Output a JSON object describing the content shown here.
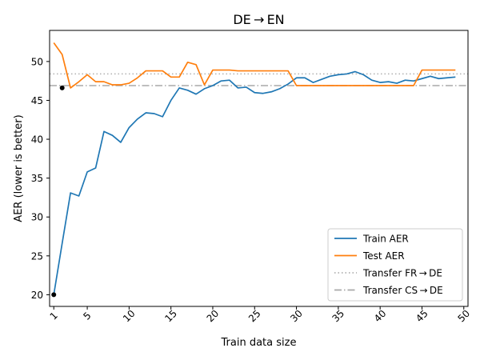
{
  "chart_data": {
    "type": "line",
    "title": "DE → EN",
    "xlabel": "Train data size",
    "ylabel": "AER (lower is better)",
    "xlim": [
      0.5,
      50.5
    ],
    "ylim": [
      18.5,
      54
    ],
    "x_ticks": [
      1,
      5,
      10,
      15,
      20,
      25,
      30,
      35,
      40,
      45,
      50
    ],
    "x_tick_labels": [
      "1",
      "5",
      "10",
      "15",
      "20",
      "25",
      "30",
      "35",
      "40",
      "45",
      "50"
    ],
    "y_ticks": [
      20,
      25,
      30,
      35,
      40,
      45,
      50
    ],
    "y_tick_labels": [
      "20",
      "25",
      "30",
      "35",
      "40",
      "45",
      "50"
    ],
    "grid": false,
    "legend_position": "lower-right",
    "x": [
      1,
      2,
      3,
      4,
      5,
      6,
      7,
      8,
      9,
      10,
      11,
      12,
      13,
      14,
      15,
      16,
      17,
      18,
      19,
      20,
      21,
      22,
      23,
      24,
      25,
      26,
      27,
      28,
      29,
      30,
      31,
      32,
      33,
      34,
      35,
      36,
      37,
      38,
      39,
      40,
      41,
      42,
      43,
      44,
      45,
      46,
      47,
      48,
      49
    ],
    "series": [
      {
        "name": "Train AER",
        "color": "#1f77b4",
        "style": "solid",
        "values": [
          20.0,
          26.6,
          33.1,
          32.7,
          35.8,
          36.3,
          41.0,
          40.5,
          39.6,
          41.5,
          42.6,
          43.4,
          43.3,
          42.9,
          45.0,
          46.6,
          46.3,
          45.8,
          46.5,
          46.9,
          47.5,
          47.6,
          46.6,
          46.7,
          46.0,
          45.9,
          46.1,
          46.5,
          47.1,
          47.9,
          47.9,
          47.3,
          47.7,
          48.1,
          48.3,
          48.4,
          48.7,
          48.3,
          47.6,
          47.3,
          47.4,
          47.2,
          47.6,
          47.5,
          47.8,
          48.1,
          47.8,
          47.9,
          48.0
        ]
      },
      {
        "name": "Test AER",
        "color": "#ff7f0e",
        "style": "solid",
        "values": [
          52.4,
          50.9,
          46.6,
          47.4,
          48.3,
          47.4,
          47.4,
          47.0,
          47.0,
          47.2,
          47.9,
          48.8,
          48.8,
          48.8,
          48.0,
          48.0,
          49.9,
          49.6,
          47.0,
          48.9,
          48.9,
          48.9,
          48.8,
          48.8,
          48.8,
          48.8,
          48.8,
          48.8,
          48.8,
          46.9,
          46.9,
          46.9,
          46.9,
          46.9,
          46.9,
          46.9,
          46.9,
          46.9,
          46.9,
          46.9,
          46.9,
          46.9,
          46.9,
          46.9,
          48.9,
          48.9,
          48.9,
          48.9,
          48.9
        ]
      },
      {
        "name": "Transfer FR → DE",
        "color": "#b0b0b0",
        "style": "dotted",
        "constant": 48.4
      },
      {
        "name": "Transfer CS → DE",
        "color": "#a8a8a8",
        "style": "dashdot",
        "constant": 46.9
      }
    ],
    "markers": [
      {
        "x": 1,
        "y": 20.0
      },
      {
        "x": 2,
        "y": 46.6
      }
    ]
  }
}
